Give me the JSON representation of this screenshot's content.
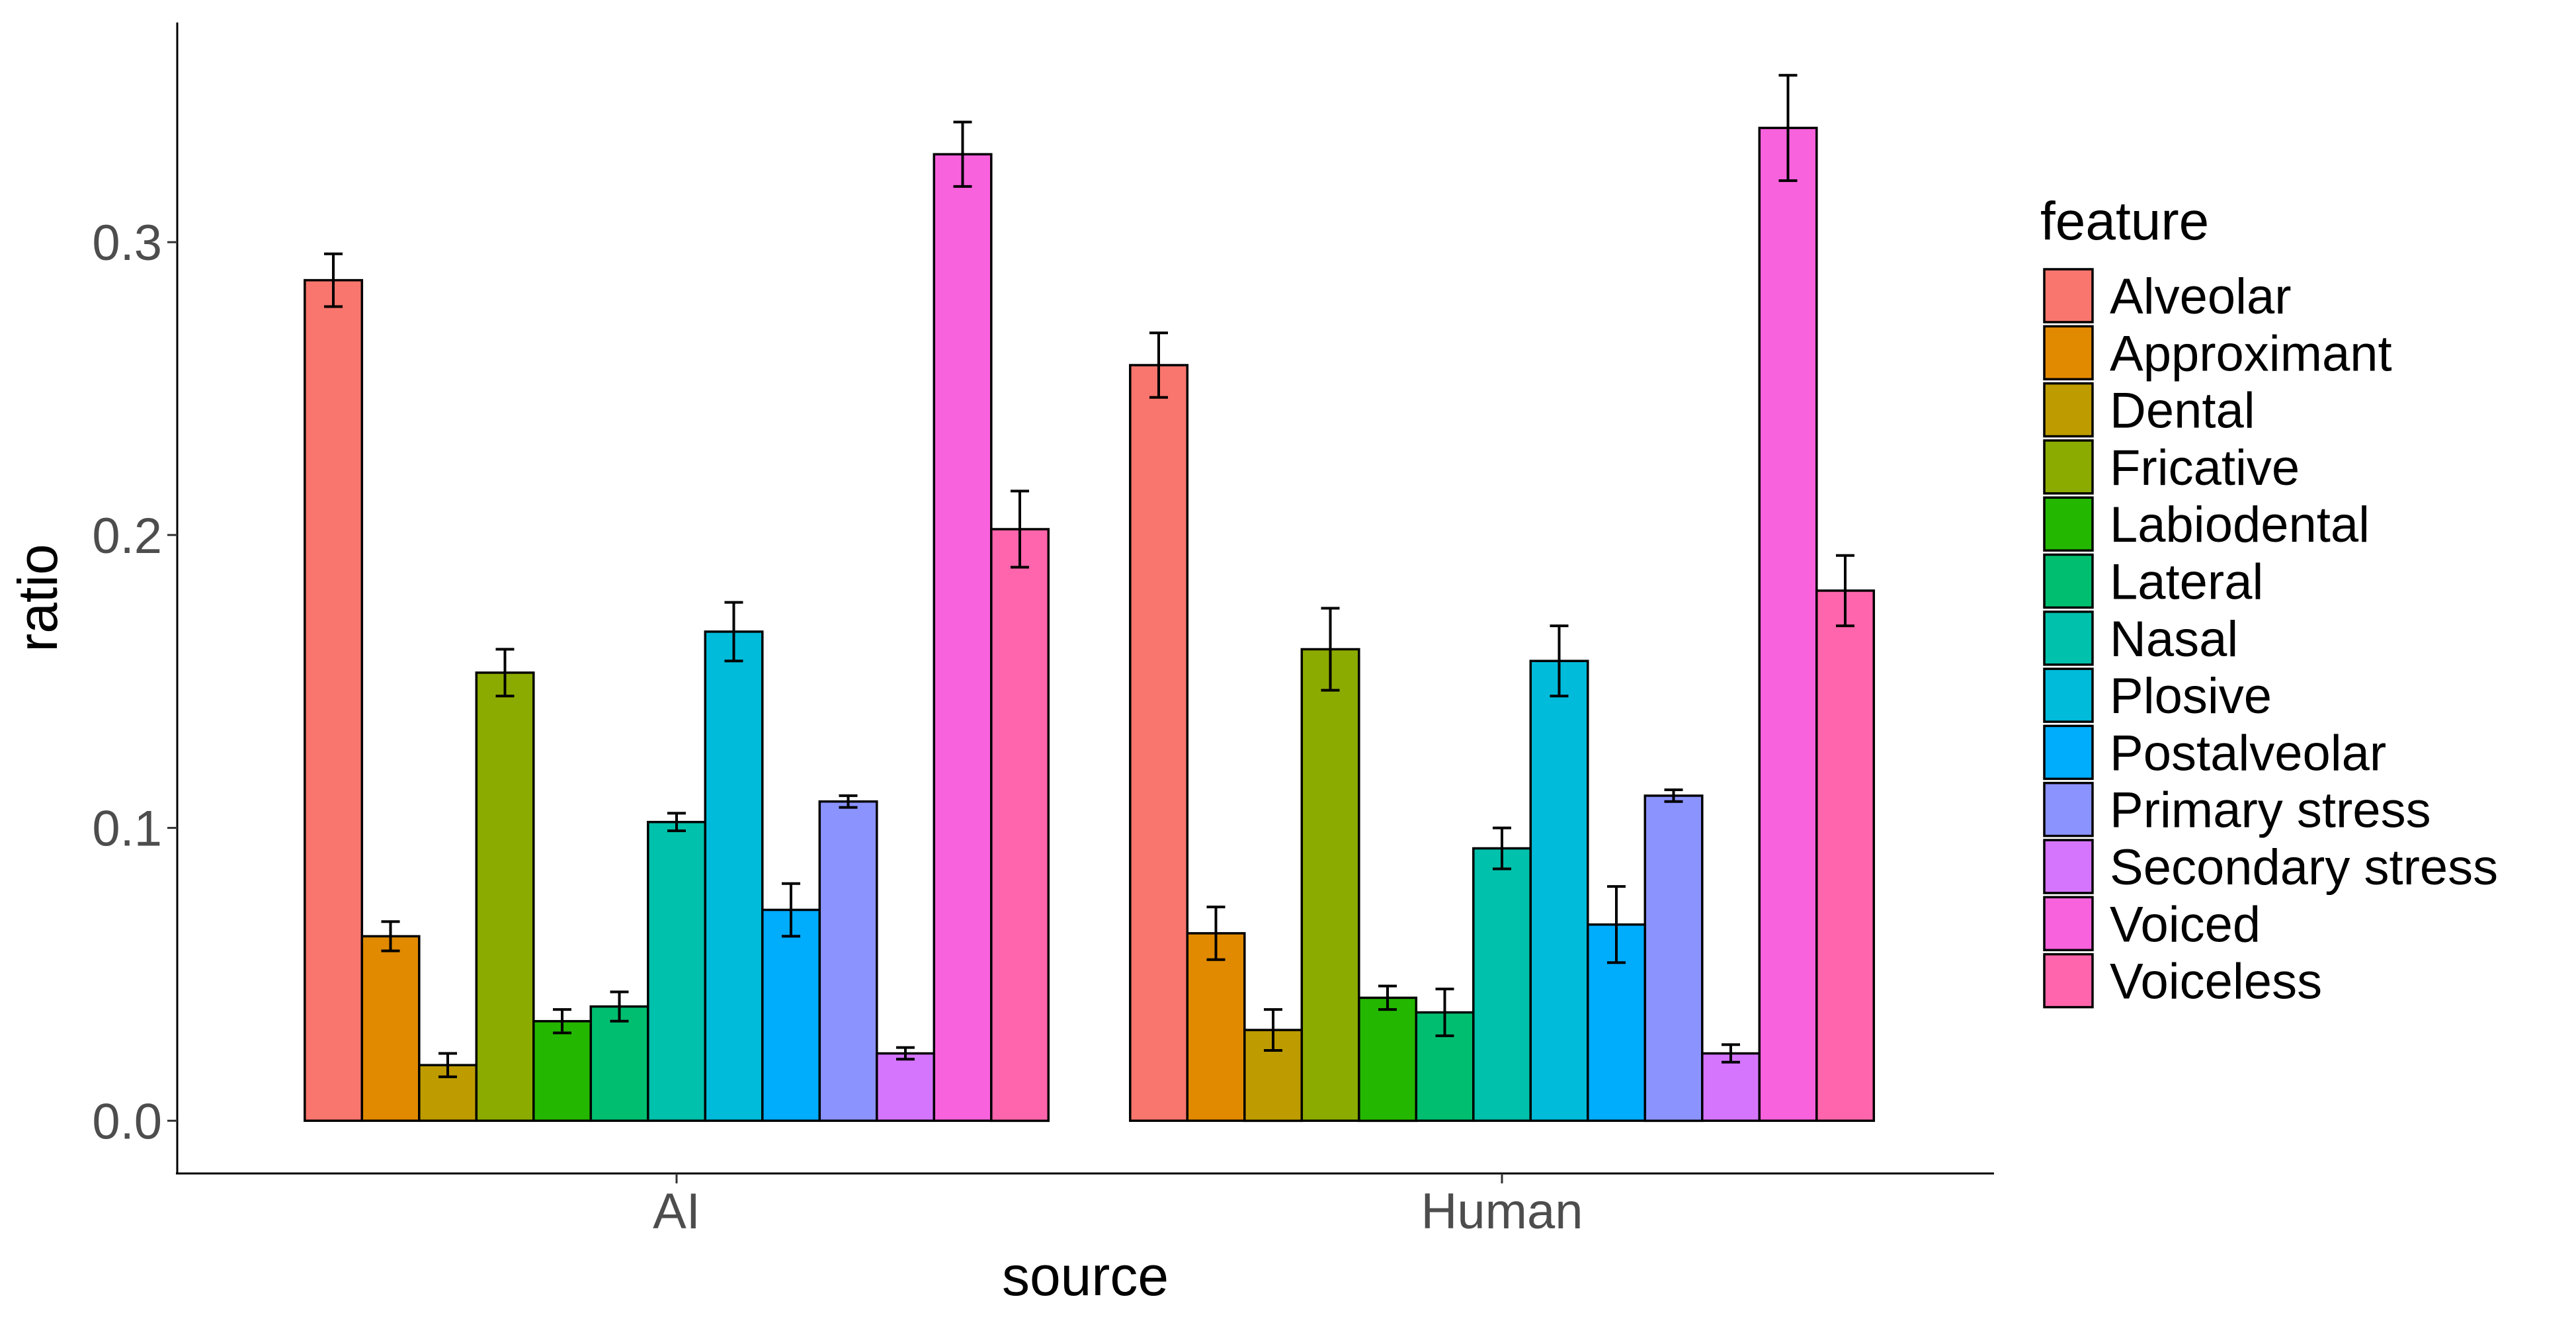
{
  "chart_data": {
    "type": "bar",
    "title": "",
    "xlabel": "source",
    "ylabel": "ratio",
    "ylim": [
      -0.018,
      0.375
    ],
    "yticks": [
      0.0,
      0.1,
      0.2,
      0.3
    ],
    "ytick_labels": [
      "0.0",
      "0.1",
      "0.2",
      "0.3"
    ],
    "categories": [
      "AI",
      "Human"
    ],
    "legend": {
      "title": "feature",
      "position": "right"
    },
    "series": [
      {
        "name": "Alveolar",
        "color": "#F8766D",
        "values": [
          0.287,
          0.258
        ],
        "err": [
          0.009,
          0.011
        ]
      },
      {
        "name": "Approximant",
        "color": "#E18A00",
        "values": [
          0.063,
          0.064
        ],
        "err": [
          0.005,
          0.009
        ]
      },
      {
        "name": "Dental",
        "color": "#BE9C00",
        "values": [
          0.019,
          0.031
        ],
        "err": [
          0.004,
          0.007
        ]
      },
      {
        "name": "Fricative",
        "color": "#8CAB00",
        "values": [
          0.153,
          0.161
        ],
        "err": [
          0.008,
          0.014
        ]
      },
      {
        "name": "Labiodental",
        "color": "#24B700",
        "values": [
          0.034,
          0.042
        ],
        "err": [
          0.004,
          0.004
        ]
      },
      {
        "name": "Lateral",
        "color": "#00BE70",
        "values": [
          0.039,
          0.037
        ],
        "err": [
          0.005,
          0.008
        ]
      },
      {
        "name": "Nasal",
        "color": "#00C1AB",
        "values": [
          0.102,
          0.093
        ],
        "err": [
          0.003,
          0.007
        ]
      },
      {
        "name": "Plosive",
        "color": "#00BBDA",
        "values": [
          0.167,
          0.157
        ],
        "err": [
          0.01,
          0.012
        ]
      },
      {
        "name": "Postalveolar",
        "color": "#00ACFC",
        "values": [
          0.072,
          0.067
        ],
        "err": [
          0.009,
          0.013
        ]
      },
      {
        "name": "Primary stress",
        "color": "#8B93FF",
        "values": [
          0.109,
          0.111
        ],
        "err": [
          0.002,
          0.002
        ]
      },
      {
        "name": "Secondary stress",
        "color": "#D575FE",
        "values": [
          0.023,
          0.023
        ],
        "err": [
          0.002,
          0.003
        ]
      },
      {
        "name": "Voiced",
        "color": "#F962DD",
        "values": [
          0.33,
          0.339
        ],
        "err": [
          0.011,
          0.018
        ]
      },
      {
        "name": "Voiceless",
        "color": "#FF65AC",
        "values": [
          0.202,
          0.181
        ],
        "err": [
          0.013,
          0.012
        ]
      }
    ]
  }
}
